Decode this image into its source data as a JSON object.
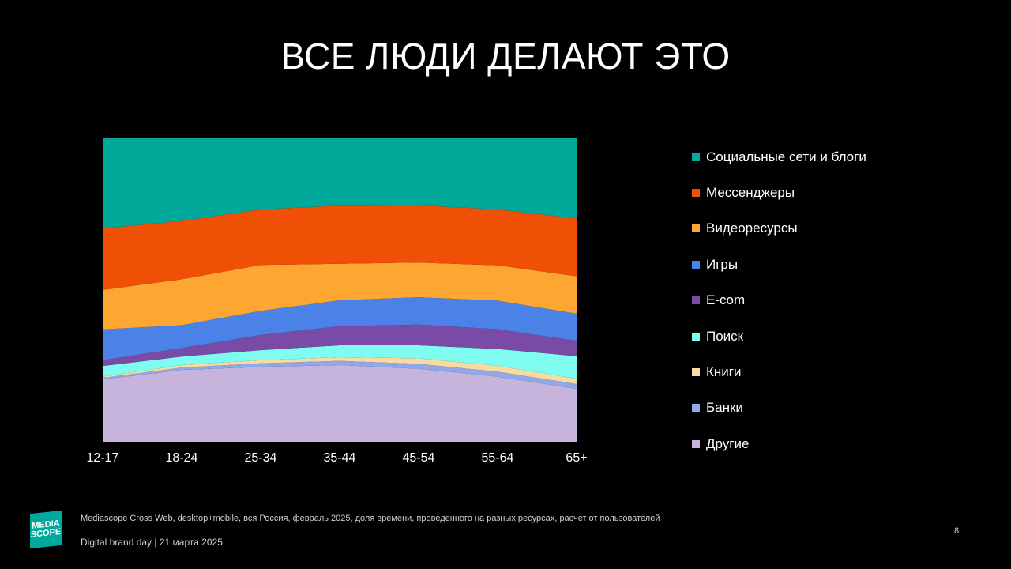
{
  "title": "ВСЕ ЛЮДИ ДЕЛАЮТ ЭТО",
  "logo": {
    "line1": "MEDIA",
    "line2": "SCOPE"
  },
  "footer": {
    "source": "Mediascope Cross  Web, desktop+mobile, вся Россия, февраль 2025, доля времени, проведенного на разных ресурсах, расчет от пользователей",
    "event": "Digital brand day |  21 марта 2025",
    "page_number": "8"
  },
  "chart_data": {
    "type": "area",
    "stacked": true,
    "normalized": true,
    "x": [
      "12-17",
      "18-24",
      "25-34",
      "35-44",
      "45-54",
      "55-64",
      "65+"
    ],
    "ylim": [
      0,
      100
    ],
    "grid": false,
    "legend_position": "right",
    "series": [
      {
        "name": "Другие",
        "color": "#c7b4dc",
        "values": [
          20.5,
          23.6,
          24.6,
          25.2,
          24.0,
          21.4,
          17.4
        ]
      },
      {
        "name": "Банки",
        "color": "#8fa8ea",
        "values": [
          0.5,
          0.8,
          1.2,
          1.4,
          1.6,
          1.6,
          1.6
        ]
      },
      {
        "name": "Книги",
        "color": "#f7dba3",
        "values": [
          0.4,
          0.8,
          1.0,
          1.2,
          1.8,
          2.0,
          1.7
        ]
      },
      {
        "name": "Поиск",
        "color": "#7ffcf0",
        "values": [
          3.5,
          2.8,
          3.3,
          3.9,
          4.3,
          5.5,
          7.4
        ]
      },
      {
        "name": "E-com",
        "color": "#7a4ba6",
        "values": [
          1.9,
          2.8,
          5.0,
          6.3,
          6.8,
          6.5,
          5.1
        ]
      },
      {
        "name": "Игры",
        "color": "#4a82e8",
        "values": [
          10.1,
          7.5,
          7.9,
          8.5,
          9.0,
          9.4,
          8.9
        ]
      },
      {
        "name": "Видеоресурсы",
        "color": "#fea632",
        "values": [
          13.0,
          15.1,
          15.1,
          12.0,
          11.4,
          11.6,
          12.3
        ]
      },
      {
        "name": "Мессенджеры",
        "color": "#f05006",
        "values": [
          20.2,
          19.2,
          18.3,
          19.1,
          18.8,
          18.4,
          19.0
        ]
      },
      {
        "name": "Социальные сети и блоги",
        "color": "#00a99a",
        "values": [
          29.9,
          27.4,
          23.6,
          22.4,
          22.3,
          23.6,
          26.6
        ]
      }
    ]
  }
}
